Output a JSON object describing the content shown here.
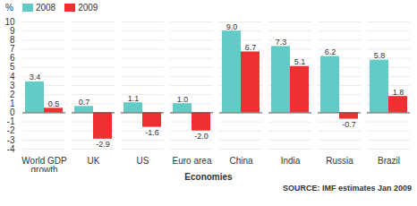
{
  "chart_data": {
    "type": "bar",
    "categories": [
      "World GDP growth",
      "UK",
      "US",
      "Euro area",
      "China",
      "India",
      "Russia",
      "Brazil"
    ],
    "series": [
      {
        "name": "2008",
        "color": "#62cbc5",
        "values": [
          3.4,
          0.7,
          1.1,
          1.0,
          9.0,
          7.3,
          6.2,
          5.8
        ],
        "value_labels": [
          "3.4",
          "0.7",
          "1.1",
          "1.0",
          "9.0",
          "7.3",
          "6.2",
          "5.8"
        ]
      },
      {
        "name": "2009",
        "color": "#ee3030",
        "values": [
          0.5,
          -2.9,
          -1.6,
          -2.0,
          6.7,
          5.1,
          -0.7,
          1.8
        ],
        "value_labels": [
          "0.5",
          "-2.9",
          "-1.6",
          "-2.0",
          "6.7",
          "5.1",
          "-0.7",
          "1.8"
        ]
      }
    ],
    "y_label": "%",
    "x_label": "Economies",
    "caption": "SOURCE: IMF estimates Jan 2009",
    "ylim": [
      -4,
      10
    ],
    "yticks": [
      -4,
      -3,
      -2,
      -1,
      0,
      1,
      2,
      3,
      4,
      5,
      6,
      7,
      8,
      9,
      10
    ],
    "grid": true,
    "legend": "top-left",
    "data_labels": true
  }
}
